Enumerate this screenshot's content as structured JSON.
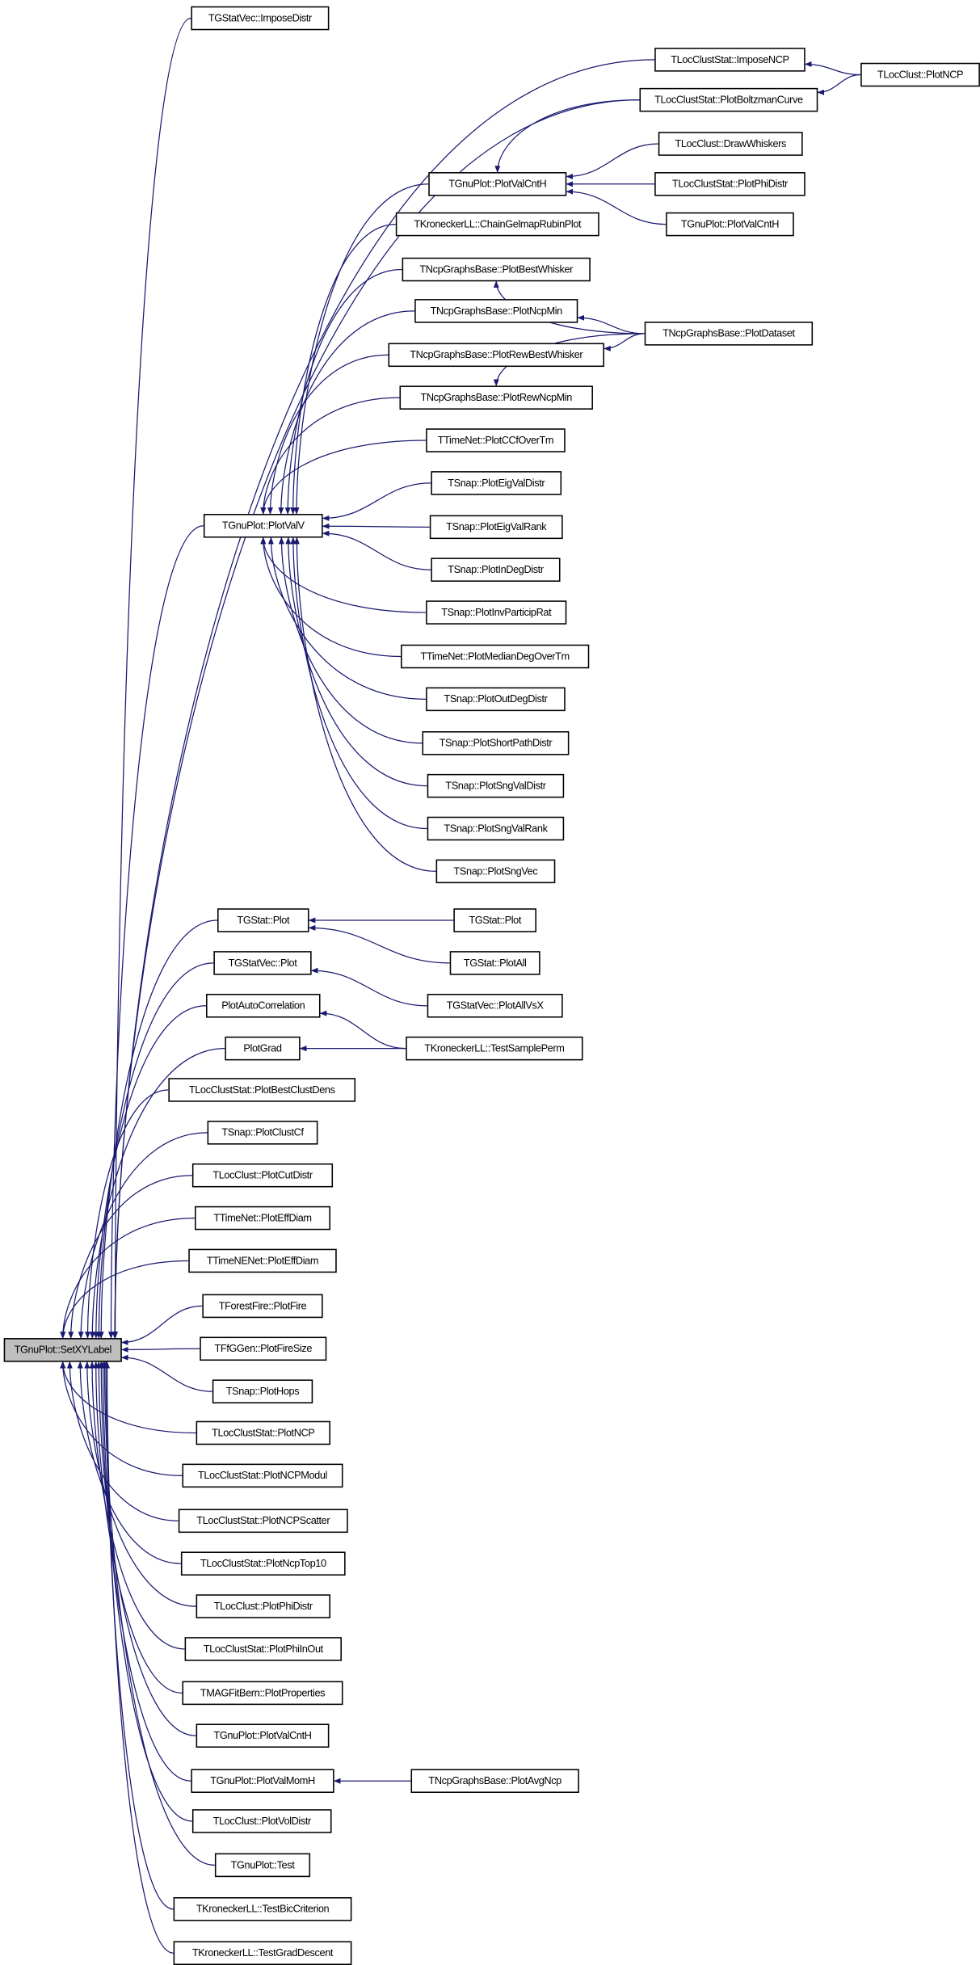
{
  "root": "setxylabel",
  "colors": {
    "edge": "#191970",
    "root_fill": "#bfbfbf",
    "node_fill": "#ffffff"
  },
  "nodes": [
    {
      "id": "setxylabel",
      "label": "TGnuPlot::SetXYLabel"
    },
    {
      "id": "gsv_imposedistr",
      "label": "TGStatVec::ImposeDistr"
    },
    {
      "id": "lcs_imposencp",
      "label": "TLocClustStat::ImposeNCP"
    },
    {
      "id": "lcs_boltzman",
      "label": "TLocClustStat::PlotBoltzmanCurve"
    },
    {
      "id": "lc_plotncp",
      "label": "TLocClust::PlotNCP"
    },
    {
      "id": "gp_valcnth_a",
      "label": "TGnuPlot::PlotValCntH"
    },
    {
      "id": "lc_drawwhiskers",
      "label": "TLocClust::DrawWhiskers"
    },
    {
      "id": "lcs_phidistr",
      "label": "TLocClustStat::PlotPhiDistr"
    },
    {
      "id": "gp_valcnth_b",
      "label": "TGnuPlot::PlotValCntH"
    },
    {
      "id": "kll_chain",
      "label": "TKroneckerLL::ChainGelmapRubinPlot"
    },
    {
      "id": "ncp_bestwhisker",
      "label": "TNcpGraphsBase::PlotBestWhisker"
    },
    {
      "id": "ncp_ncpmin",
      "label": "TNcpGraphsBase::PlotNcpMin"
    },
    {
      "id": "ncp_rewbestwhisker",
      "label": "TNcpGraphsBase::PlotRewBestWhisker"
    },
    {
      "id": "ncp_rewncpmin",
      "label": "TNcpGraphsBase::PlotRewNcpMin"
    },
    {
      "id": "ncp_dataset",
      "label": "TNcpGraphsBase::PlotDataset"
    },
    {
      "id": "tn_ccf",
      "label": "TTimeNet::PlotCCfOverTm"
    },
    {
      "id": "sn_eigdistr",
      "label": "TSnap::PlotEigValDistr"
    },
    {
      "id": "gp_plotvalv",
      "label": "TGnuPlot::PlotValV"
    },
    {
      "id": "sn_eigrank",
      "label": "TSnap::PlotEigValRank"
    },
    {
      "id": "sn_indeg",
      "label": "TSnap::PlotInDegDistr"
    },
    {
      "id": "sn_invpart",
      "label": "TSnap::PlotInvParticipRat"
    },
    {
      "id": "tn_mediandeg",
      "label": "TTimeNet::PlotMedianDegOverTm"
    },
    {
      "id": "sn_outdeg",
      "label": "TSnap::PlotOutDegDistr"
    },
    {
      "id": "sn_shortpath",
      "label": "TSnap::PlotShortPathDistr"
    },
    {
      "id": "sn_sngdistr",
      "label": "TSnap::PlotSngValDistr"
    },
    {
      "id": "sn_sngrank",
      "label": "TSnap::PlotSngValRank"
    },
    {
      "id": "sn_sngvec",
      "label": "TSnap::PlotSngVec"
    },
    {
      "id": "gs_plot",
      "label": "TGStat::Plot"
    },
    {
      "id": "gs_plot2",
      "label": "TGStat::Plot"
    },
    {
      "id": "gs_plotall",
      "label": "TGStat::PlotAll"
    },
    {
      "id": "gsv_plot",
      "label": "TGStatVec::Plot"
    },
    {
      "id": "gsv_allvsx",
      "label": "TGStatVec::PlotAllVsX"
    },
    {
      "id": "autocorr",
      "label": "PlotAutoCorrelation"
    },
    {
      "id": "plotgrad",
      "label": "PlotGrad"
    },
    {
      "id": "kll_testsample",
      "label": "TKroneckerLL::TestSamplePerm"
    },
    {
      "id": "lcs_bestclust",
      "label": "TLocClustStat::PlotBestClustDens"
    },
    {
      "id": "sn_clustcf",
      "label": "TSnap::PlotClustCf"
    },
    {
      "id": "lc_cutdistr",
      "label": "TLocClust::PlotCutDistr"
    },
    {
      "id": "tn_effdiam",
      "label": "TTimeNet::PlotEffDiam"
    },
    {
      "id": "tnen_effdiam",
      "label": "TTimeNENet::PlotEffDiam"
    },
    {
      "id": "ff_plotfire",
      "label": "TForestFire::PlotFire"
    },
    {
      "id": "ffg_firesize",
      "label": "TFfGGen::PlotFireSize"
    },
    {
      "id": "sn_hops",
      "label": "TSnap::PlotHops"
    },
    {
      "id": "lcs_plotncp",
      "label": "TLocClustStat::PlotNCP"
    },
    {
      "id": "lcs_ncpmodul",
      "label": "TLocClustStat::PlotNCPModul"
    },
    {
      "id": "lcs_ncpscatter",
      "label": "TLocClustStat::PlotNCPScatter"
    },
    {
      "id": "lcs_ncptop10",
      "label": "TLocClustStat::PlotNcpTop10"
    },
    {
      "id": "lc_phidistr",
      "label": "TLocClust::PlotPhiDistr"
    },
    {
      "id": "lcs_phiinout",
      "label": "TLocClustStat::PlotPhiInOut"
    },
    {
      "id": "mag_props",
      "label": "TMAGFitBern::PlotProperties"
    },
    {
      "id": "gp_valcnth_c",
      "label": "TGnuPlot::PlotValCntH"
    },
    {
      "id": "gp_valmomh",
      "label": "TGnuPlot::PlotValMomH"
    },
    {
      "id": "ncp_avgncp",
      "label": "TNcpGraphsBase::PlotAvgNcp"
    },
    {
      "id": "lc_voldistr",
      "label": "TLocClust::PlotVolDistr"
    },
    {
      "id": "gp_test",
      "label": "TGnuPlot::Test"
    },
    {
      "id": "kll_bic",
      "label": "TKroneckerLL::TestBicCriterion"
    },
    {
      "id": "kll_graddesc",
      "label": "TKroneckerLL::TestGradDescent"
    }
  ],
  "edges": [
    [
      "gsv_imposedistr",
      "setxylabel"
    ],
    [
      "lcs_imposencp",
      "setxylabel"
    ],
    [
      "lcs_boltzman",
      "setxylabel"
    ],
    [
      "gp_plotvalv",
      "setxylabel"
    ],
    [
      "gs_plot",
      "setxylabel"
    ],
    [
      "gsv_plot",
      "setxylabel"
    ],
    [
      "autocorr",
      "setxylabel"
    ],
    [
      "plotgrad",
      "setxylabel"
    ],
    [
      "lcs_bestclust",
      "setxylabel"
    ],
    [
      "sn_clustcf",
      "setxylabel"
    ],
    [
      "lc_cutdistr",
      "setxylabel"
    ],
    [
      "tn_effdiam",
      "setxylabel"
    ],
    [
      "tnen_effdiam",
      "setxylabel"
    ],
    [
      "ff_plotfire",
      "setxylabel"
    ],
    [
      "ffg_firesize",
      "setxylabel"
    ],
    [
      "sn_hops",
      "setxylabel"
    ],
    [
      "lcs_plotncp",
      "setxylabel"
    ],
    [
      "lcs_ncpmodul",
      "setxylabel"
    ],
    [
      "lcs_ncpscatter",
      "setxylabel"
    ],
    [
      "lcs_ncptop10",
      "setxylabel"
    ],
    [
      "lc_phidistr",
      "setxylabel"
    ],
    [
      "lcs_phiinout",
      "setxylabel"
    ],
    [
      "mag_props",
      "setxylabel"
    ],
    [
      "gp_valcnth_c",
      "setxylabel"
    ],
    [
      "gp_valmomh",
      "setxylabel"
    ],
    [
      "lc_voldistr",
      "setxylabel"
    ],
    [
      "gp_test",
      "setxylabel"
    ],
    [
      "kll_bic",
      "setxylabel"
    ],
    [
      "kll_graddesc",
      "setxylabel"
    ],
    [
      "gp_valcnth_a",
      "gp_plotvalv"
    ],
    [
      "kll_chain",
      "gp_plotvalv"
    ],
    [
      "ncp_bestwhisker",
      "gp_plotvalv"
    ],
    [
      "ncp_ncpmin",
      "gp_plotvalv"
    ],
    [
      "ncp_rewbestwhisker",
      "gp_plotvalv"
    ],
    [
      "ncp_rewncpmin",
      "gp_plotvalv"
    ],
    [
      "tn_ccf",
      "gp_plotvalv"
    ],
    [
      "sn_eigdistr",
      "gp_plotvalv"
    ],
    [
      "sn_eigrank",
      "gp_plotvalv"
    ],
    [
      "sn_indeg",
      "gp_plotvalv"
    ],
    [
      "sn_invpart",
      "gp_plotvalv"
    ],
    [
      "tn_mediandeg",
      "gp_plotvalv"
    ],
    [
      "sn_outdeg",
      "gp_plotvalv"
    ],
    [
      "sn_shortpath",
      "gp_plotvalv"
    ],
    [
      "sn_sngdistr",
      "gp_plotvalv"
    ],
    [
      "sn_sngrank",
      "gp_plotvalv"
    ],
    [
      "sn_sngvec",
      "gp_plotvalv"
    ],
    [
      "lcs_boltzman",
      "gp_valcnth_a"
    ],
    [
      "lc_drawwhiskers",
      "gp_valcnth_a"
    ],
    [
      "lcs_phidistr",
      "gp_valcnth_a"
    ],
    [
      "gp_valcnth_b",
      "gp_valcnth_a"
    ],
    [
      "lc_plotncp",
      "lcs_imposencp"
    ],
    [
      "lc_plotncp",
      "lcs_boltzman"
    ],
    [
      "ncp_dataset",
      "ncp_bestwhisker"
    ],
    [
      "ncp_dataset",
      "ncp_ncpmin"
    ],
    [
      "ncp_dataset",
      "ncp_rewbestwhisker"
    ],
    [
      "ncp_dataset",
      "ncp_rewncpmin"
    ],
    [
      "gs_plot2",
      "gs_plot"
    ],
    [
      "gs_plotall",
      "gs_plot"
    ],
    [
      "gsv_allvsx",
      "gsv_plot"
    ],
    [
      "kll_testsample",
      "autocorr"
    ],
    [
      "kll_testsample",
      "plotgrad"
    ],
    [
      "ncp_avgncp",
      "gp_valmomh"
    ]
  ]
}
